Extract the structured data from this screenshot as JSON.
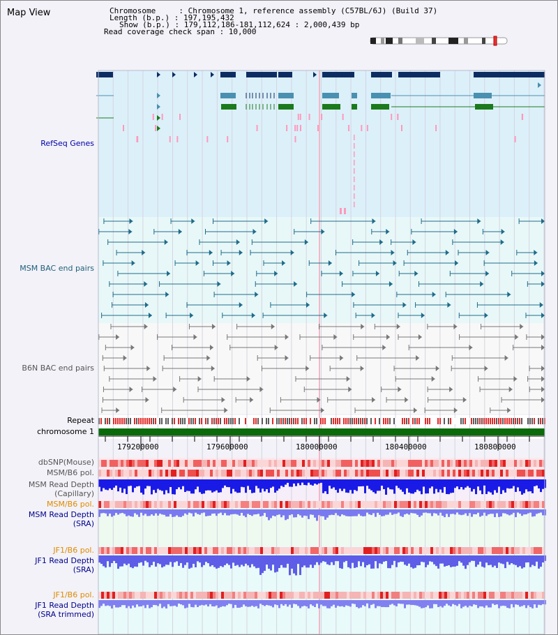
{
  "title": "Map View",
  "info": {
    "lines": [
      "Chromosome     : Chromosome 1, reference assembly (C57BL/6J) (Build 37)",
      "Length (b.p.) : 197,195,432",
      "Show (b.p.) : 179,112,186-181,112,624 : 2,000,439 bp",
      "Read coverage check span : 10,000"
    ]
  },
  "tracks": {
    "refseq": "RefSeq Genes",
    "msm_bac": "MSM BAC end pairs",
    "b6n_bac": "B6N BAC end pairs",
    "repeat": "Repeat",
    "chromosome": "chromosome 1",
    "dbsnp": "dbSNP(Mouse)",
    "msm_b6_pol_1": "MSM/B6 pol.",
    "msm_read_depth_cap_1": "MSM Read Depth",
    "msm_read_depth_cap_2": "(Capillary)",
    "msm_b6_pol_2": "MSM/B6 pol.",
    "msm_read_depth_sra_1": "MSM Read Depth",
    "msm_read_depth_sra_2": "(SRA)",
    "jf1_b6_pol_1": "JF1/B6 pol.",
    "jf1_read_depth_sra_1": "JF1 Read Depth",
    "jf1_read_depth_sra_2": "(SRA)",
    "jf1_b6_pol_2": "JF1/B6 pol.",
    "jf1_read_depth_trim_1": "JF1 Read Depth",
    "jf1_read_depth_trim_2": "(SRA trimmed)"
  },
  "axis": {
    "ticks": [
      "179200000",
      "179600000",
      "180000000",
      "180400000",
      "180800000"
    ]
  },
  "colors": {
    "refseq_bg": "#dcf0fa",
    "msm_bg": "#e8f8f8",
    "b6n_bg": "#f8f8f8",
    "gene_navy": "#0d2d62",
    "gene_teal": "#4a90b0",
    "gene_green": "#1b7a1b",
    "chromosome_green": "#0b6b0b",
    "depth_blue": "#1a1ae6",
    "depth_light": "#7a7af0",
    "pol_red": "#e84a4a",
    "highlight_pink": "#ff99bb"
  }
}
